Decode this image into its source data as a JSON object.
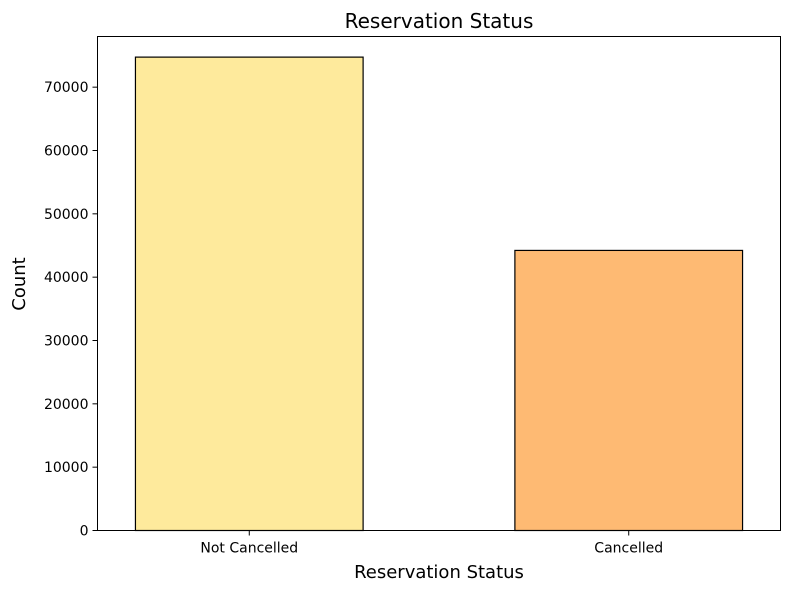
{
  "chart_data": {
    "type": "bar",
    "title": "Reservation Status",
    "xlabel": "Reservation Status",
    "ylabel": "Count",
    "categories": [
      "Not Cancelled",
      "Cancelled"
    ],
    "values": [
      74745,
      44224
    ],
    "ylim": [
      0,
      78000
    ],
    "yticks": [
      0,
      10000,
      20000,
      30000,
      40000,
      50000,
      60000,
      70000
    ],
    "ytick_labels": [
      "0",
      "10000",
      "20000",
      "30000",
      "40000",
      "50000",
      "60000",
      "70000"
    ],
    "bar_colors": [
      "#FEEA9C",
      "#FEBA73"
    ],
    "edge_color": "#000000",
    "grid": false,
    "legend": "none"
  }
}
